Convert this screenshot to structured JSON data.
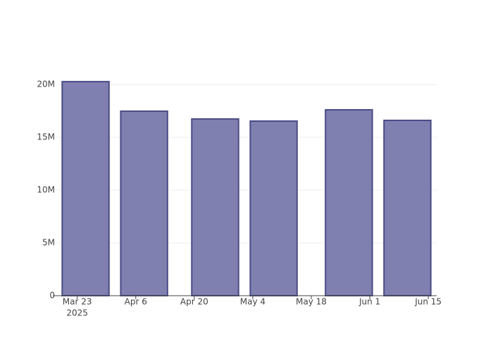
{
  "chart_data": {
    "type": "bar",
    "x": [
      "2025-03-25",
      "2025-04-08",
      "2025-04-25",
      "2025-05-09",
      "2025-05-27",
      "2025-06-10"
    ],
    "values": [
      20270000,
      17470000,
      16730000,
      16530000,
      17600000,
      16600000
    ],
    "color": "#7f7fb0",
    "edge_color": "#4b4b86",
    "bar_width_days": 11.2,
    "xlim": [
      "2025-03-18",
      "2025-06-17"
    ],
    "xticks": [
      {
        "value": "2025-03-23",
        "label": "Mar 23"
      },
      {
        "value": "2025-04-06",
        "label": "Apr 6"
      },
      {
        "value": "2025-04-20",
        "label": "Apr 20"
      },
      {
        "value": "2025-05-04",
        "label": "May 4"
      },
      {
        "value": "2025-05-18",
        "label": "May 18"
      },
      {
        "value": "2025-06-01",
        "label": "Jun 1"
      },
      {
        "value": "2025-06-15",
        "label": "Jun 15"
      }
    ],
    "x_year_label": "2025",
    "ylim": [
      0,
      21330000
    ],
    "yticks": [
      0,
      {
        "value": 5000000,
        "label": "5M"
      },
      {
        "value": 10000000,
        "label": "10M"
      },
      {
        "value": 15000000,
        "label": "15M"
      },
      {
        "value": 20000000,
        "label": "20M"
      }
    ],
    "grid": true
  }
}
